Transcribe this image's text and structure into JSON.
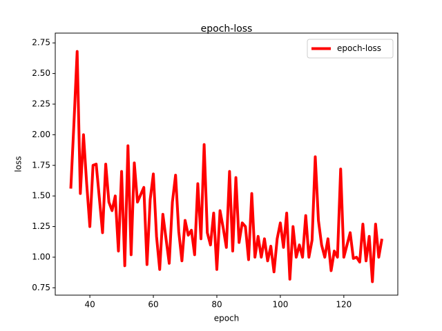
{
  "chart_data": {
    "type": "line",
    "title": "epoch-loss",
    "xlabel": "epoch",
    "ylabel": "loss",
    "x": [
      34,
      35,
      36,
      37,
      38,
      39,
      40,
      41,
      42,
      43,
      44,
      45,
      46,
      47,
      48,
      49,
      50,
      51,
      52,
      53,
      54,
      55,
      56,
      57,
      58,
      59,
      60,
      61,
      62,
      63,
      64,
      65,
      66,
      67,
      68,
      69,
      70,
      71,
      72,
      73,
      74,
      75,
      76,
      77,
      78,
      79,
      80,
      81,
      82,
      83,
      84,
      85,
      86,
      87,
      88,
      89,
      90,
      91,
      92,
      93,
      94,
      95,
      96,
      97,
      98,
      99,
      100,
      101,
      102,
      103,
      104,
      105,
      106,
      107,
      108,
      109,
      110,
      111,
      112,
      113,
      114,
      115,
      116,
      117,
      118,
      119,
      120,
      121,
      122,
      123,
      124,
      125,
      126,
      127,
      128,
      129,
      130,
      131,
      132
    ],
    "series": [
      {
        "name": "epoch-loss",
        "color": "#ff0000",
        "values": [
          1.56,
          2.1,
          2.68,
          1.52,
          2.0,
          1.6,
          1.25,
          1.75,
          1.76,
          1.48,
          1.2,
          1.76,
          1.45,
          1.38,
          1.5,
          1.05,
          1.7,
          0.93,
          1.91,
          1.02,
          1.77,
          1.45,
          1.51,
          1.57,
          0.94,
          1.47,
          1.68,
          1.17,
          0.9,
          1.35,
          1.15,
          0.95,
          1.45,
          1.67,
          1.21,
          0.97,
          1.3,
          1.18,
          1.22,
          1.02,
          1.6,
          1.15,
          1.92,
          1.2,
          1.1,
          1.36,
          0.9,
          1.38,
          1.24,
          1.08,
          1.7,
          1.05,
          1.65,
          1.12,
          1.28,
          1.25,
          0.98,
          1.52,
          1.0,
          1.17,
          1.0,
          1.15,
          0.97,
          1.09,
          0.88,
          1.15,
          1.28,
          1.08,
          1.36,
          0.82,
          1.25,
          1.0,
          1.1,
          1.0,
          1.34,
          1.0,
          1.14,
          1.82,
          1.3,
          1.1,
          1.0,
          1.15,
          0.89,
          1.05,
          1.0,
          1.72,
          1.0,
          1.1,
          1.2,
          0.99,
          1.0,
          0.96,
          1.27,
          0.97,
          1.17,
          0.8,
          1.27,
          1.0,
          1.15
        ]
      }
    ],
    "xlim": [
      29.1,
      137.0
    ],
    "ylim": [
      0.69,
      2.83
    ],
    "xticks": [
      40,
      60,
      80,
      100,
      120
    ],
    "yticks": [
      0.75,
      {
        "value": 1,
        "label": "1.00"
      },
      1.25,
      {
        "value": 1.5,
        "label": "1.50"
      },
      1.75,
      {
        "value": 2,
        "label": "2.00"
      },
      2.25,
      {
        "value": 2.5,
        "label": "2.50"
      },
      2.75
    ],
    "legend": "upper right"
  }
}
